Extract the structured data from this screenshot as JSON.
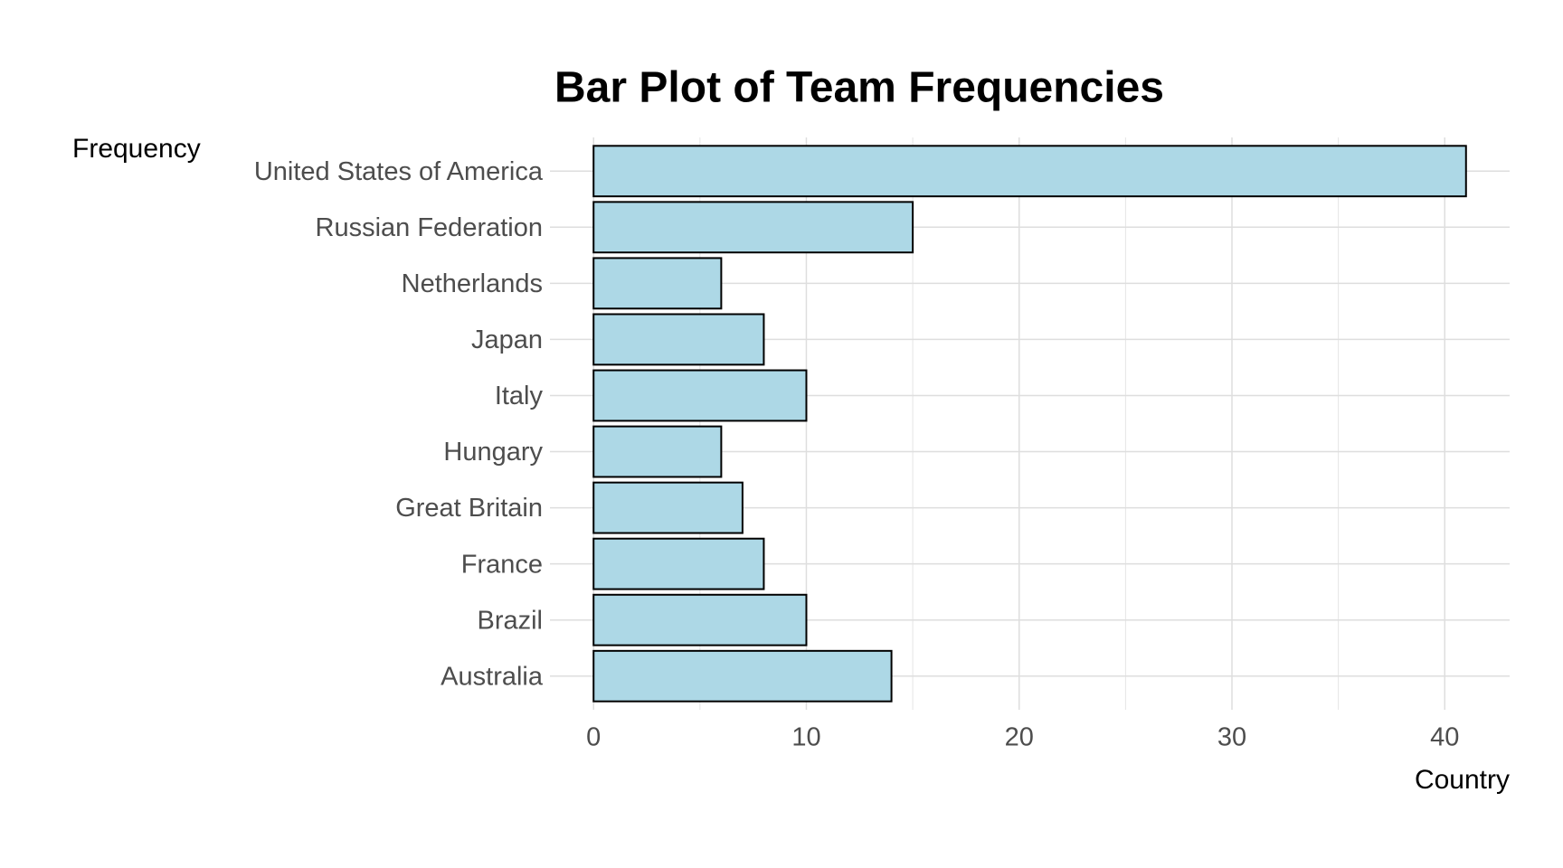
{
  "chart_data": {
    "type": "hbar",
    "title": "Bar Plot of Team Frequencies",
    "x_label": "Country",
    "y_label": "Frequency",
    "categories": [
      "United States of America",
      "Russian Federation",
      "Netherlands",
      "Japan",
      "Italy",
      "Hungary",
      "Great Britain",
      "France",
      "Brazil",
      "Australia"
    ],
    "values": [
      41,
      15,
      6,
      8,
      10,
      6,
      7,
      8,
      10,
      14
    ],
    "color": "#add8e6",
    "edge_color": "#000000",
    "xlim": [
      -2.05,
      43.05
    ],
    "xticks": [
      0,
      10,
      20,
      30,
      40
    ],
    "x_minor_ticks": [
      5,
      15,
      25,
      35
    ],
    "grid": true
  }
}
